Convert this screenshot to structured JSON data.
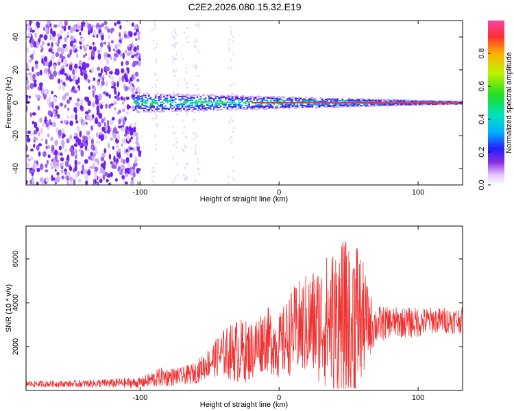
{
  "title": "C2E2.2026.080.15.32.E19",
  "chart_data": [
    {
      "type": "heatmap",
      "xlabel": "Height of straight line (km)",
      "ylabel": "Frequency (Hz)",
      "xlim": [
        -182,
        132
      ],
      "ylim": [
        -50,
        50
      ],
      "xticks": [
        -100,
        0,
        100
      ],
      "yticks": [
        -40,
        -20,
        0,
        20,
        40
      ],
      "colorbar": {
        "label": "Normalized spectral amplitude",
        "range": [
          0,
          1
        ],
        "ticks": [
          0.0,
          0.2,
          0.4,
          0.6,
          0.8
        ]
      },
      "description_values": {
        "noise_region_x": [
          -182,
          -100
        ],
        "signal_band_center_hz": 0,
        "signal_band_halfwidth_hz_at_x_minus100": 6,
        "signal_band_halfwidth_hz_at_x_120": 1
      }
    },
    {
      "type": "line",
      "xlabel": "Height of straight line (km)",
      "ylabel": "SNR (10 * v/v)",
      "xlim": [
        -182,
        132
      ],
      "ylim": [
        0,
        7500
      ],
      "xticks": [
        -100,
        0,
        100
      ],
      "yticks": [
        2000,
        4000,
        6000
      ],
      "series": [
        {
          "name": "SNR",
          "color": "#f03030",
          "envelope_x": [
            -182,
            -150,
            -100,
            -85,
            -70,
            -60,
            -50,
            -40,
            -30,
            -20,
            -10,
            0,
            10,
            20,
            30,
            40,
            50,
            55,
            60,
            65,
            70,
            80,
            90,
            100,
            110,
            120,
            132
          ],
          "envelope_mid": [
            300,
            300,
            350,
            600,
            650,
            800,
            1300,
            1700,
            1800,
            1800,
            2400,
            2000,
            2700,
            3000,
            3100,
            3200,
            3100,
            3300,
            3200,
            3000,
            3000,
            3100,
            3100,
            3100,
            3200,
            3200,
            3200
          ],
          "envelope_amp": [
            150,
            150,
            250,
            450,
            400,
            500,
            700,
            1100,
            1500,
            1400,
            1500,
            1500,
            2000,
            2400,
            2800,
            3500,
            3800,
            4200,
            2800,
            1500,
            900,
            700,
            700,
            700,
            600,
            600,
            600
          ]
        }
      ]
    }
  ]
}
